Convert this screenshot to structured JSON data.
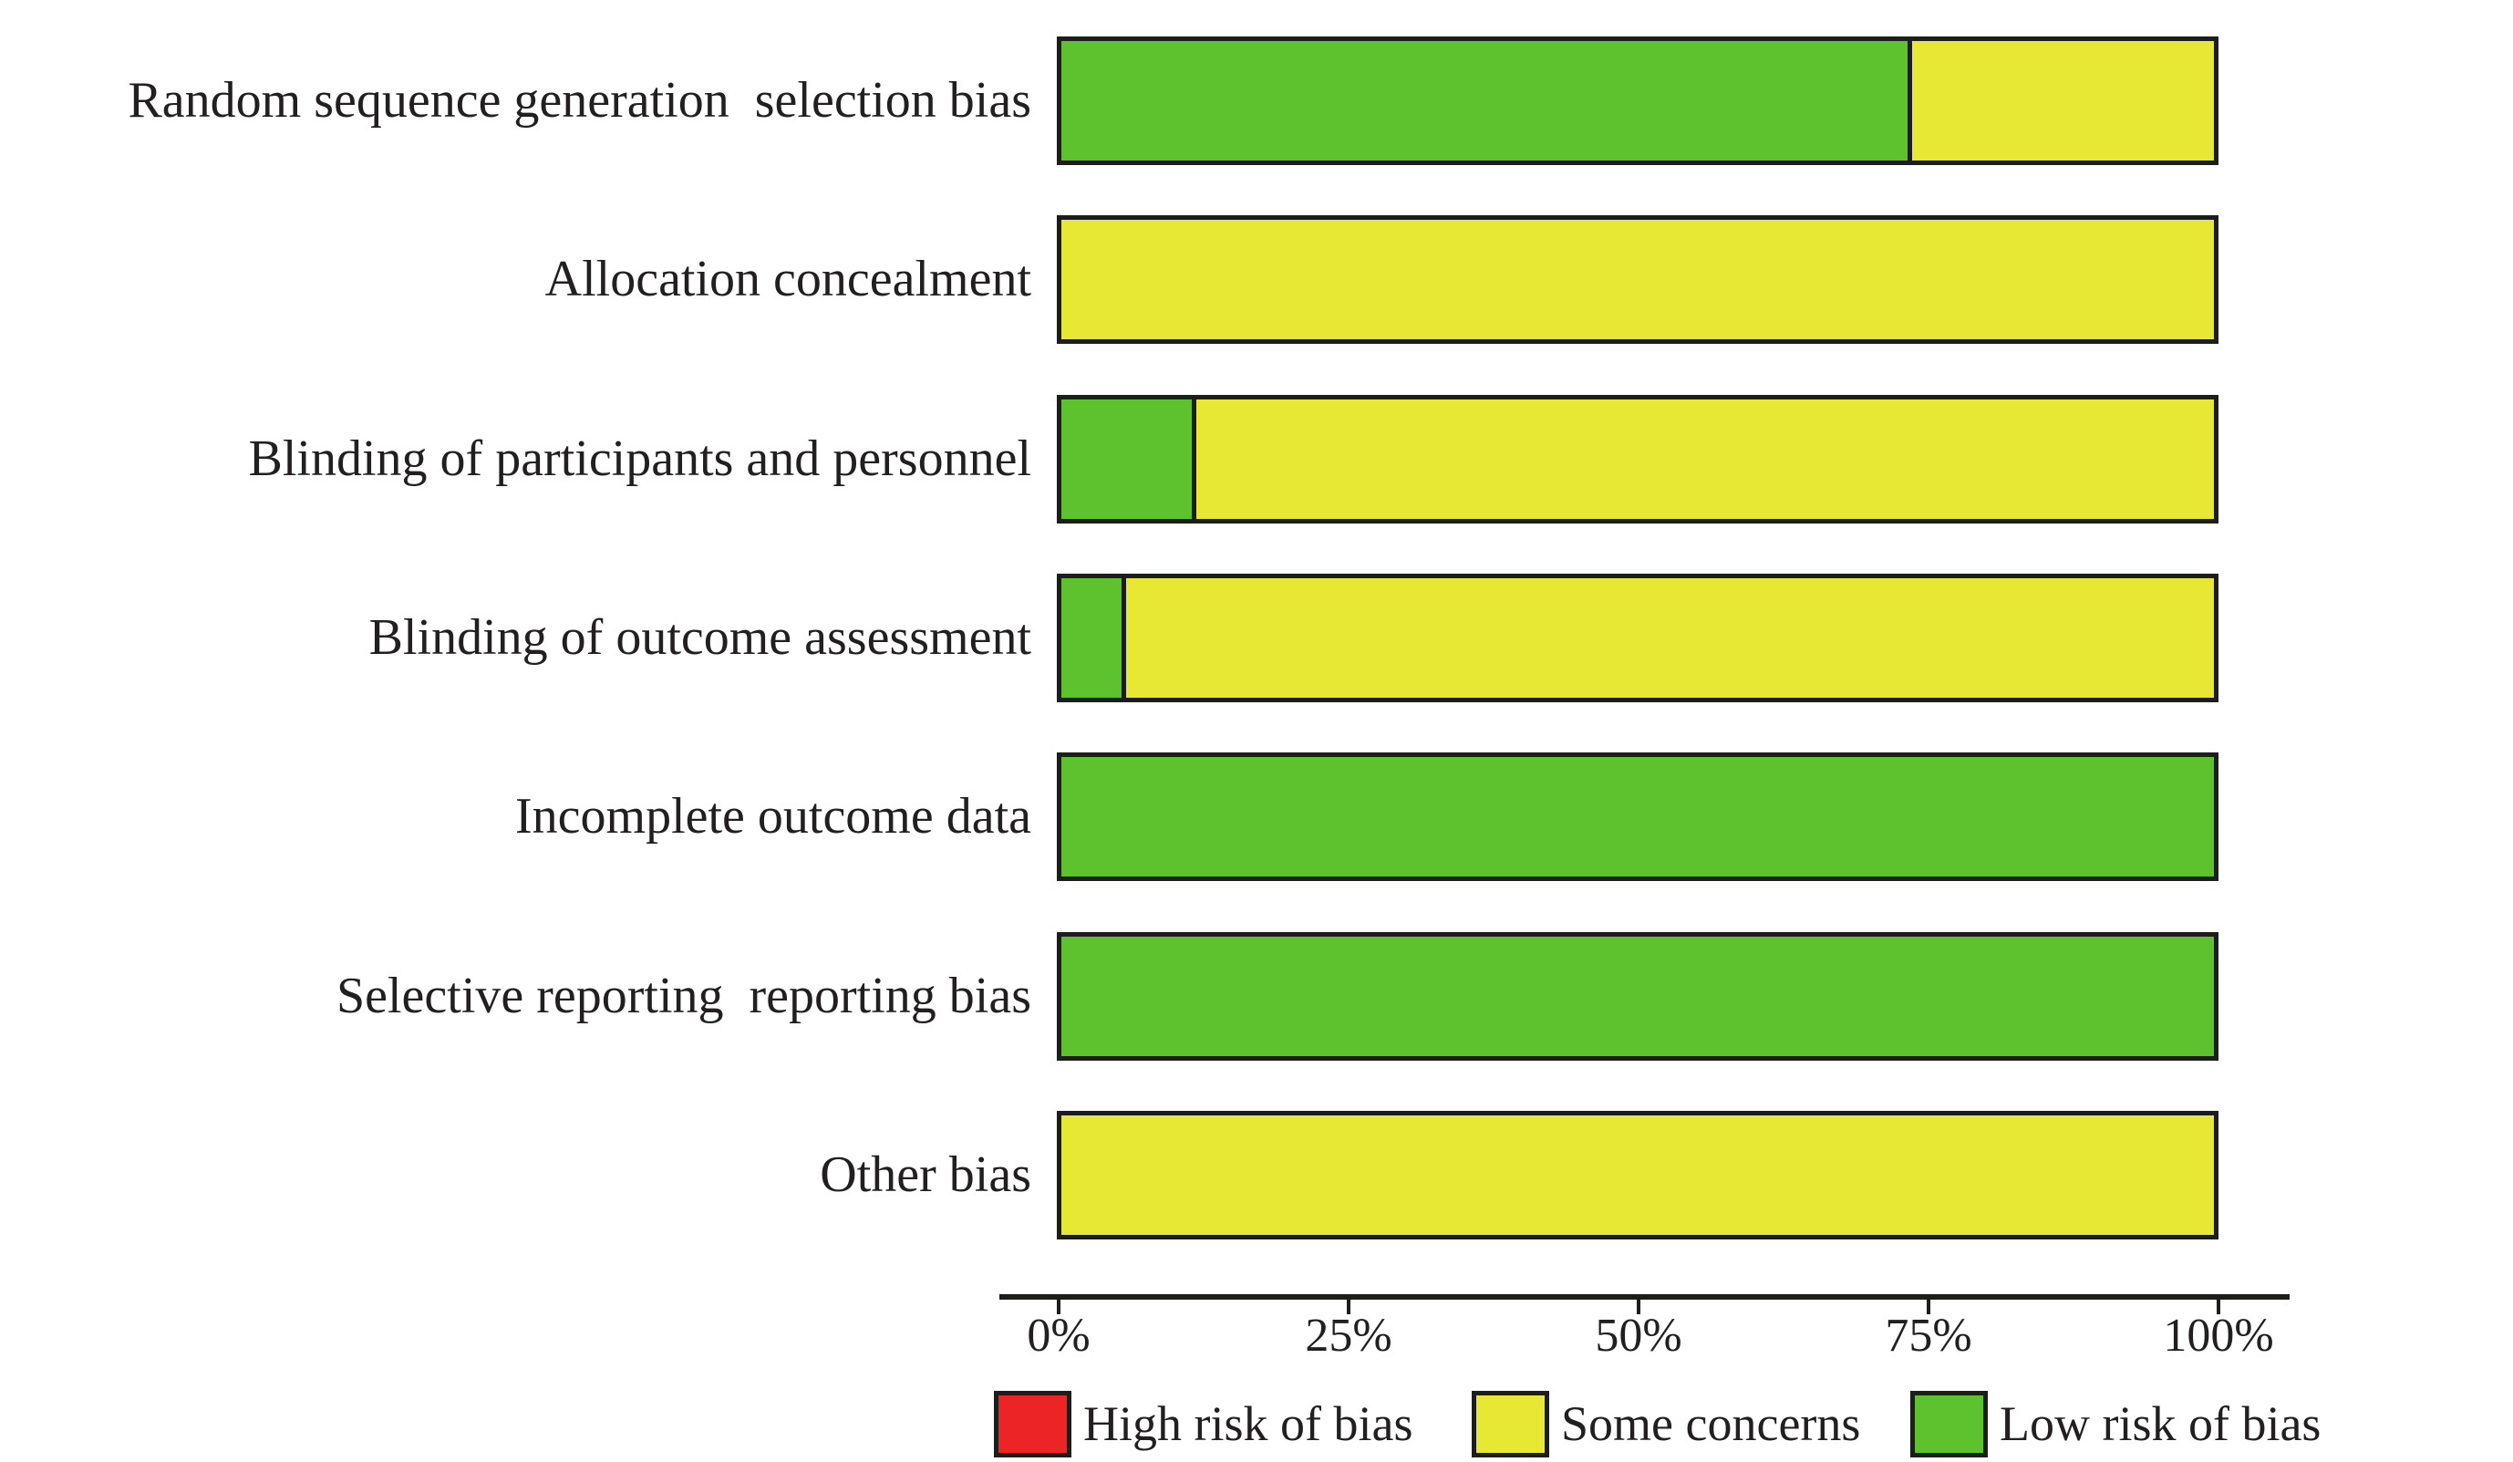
{
  "colors": {
    "high": "#ec2426",
    "some": "#e6e833",
    "low": "#5ec22f",
    "border": "#1d1d1b",
    "text": "#231f20"
  },
  "chart_data": {
    "type": "bar",
    "orientation": "horizontal",
    "stacked": true,
    "unit": "percent",
    "title": "",
    "xlabel": "",
    "ylabel": "",
    "xlim": [
      0,
      100
    ],
    "grid": false,
    "legend_position": "bottom",
    "categories": [
      "Random sequence generation  selection bias",
      "Allocation concealment",
      "Blinding of participants and personnel",
      "Blinding of outcome assessment",
      "Incomplete outcome data",
      "Selective reporting  reporting bias",
      "Other bias"
    ],
    "series": [
      {
        "name": "Low risk of bias",
        "color_key": "low",
        "values": [
          73.4,
          0,
          11.3,
          5.2,
          100,
          100,
          0
        ]
      },
      {
        "name": "Some concerns",
        "color_key": "some",
        "values": [
          26.6,
          100,
          88.7,
          94.8,
          0,
          0,
          100
        ]
      },
      {
        "name": "High risk of bias",
        "color_key": "high",
        "values": [
          0,
          0,
          0,
          0,
          0,
          0,
          0
        ]
      }
    ],
    "x_ticks": [
      "0%",
      "25%",
      "50%",
      "75%",
      "100%"
    ],
    "legend": [
      {
        "label": "High risk of bias",
        "color_key": "high"
      },
      {
        "label": "Some concerns",
        "color_key": "some"
      },
      {
        "label": "Low risk of bias",
        "color_key": "low"
      }
    ]
  }
}
